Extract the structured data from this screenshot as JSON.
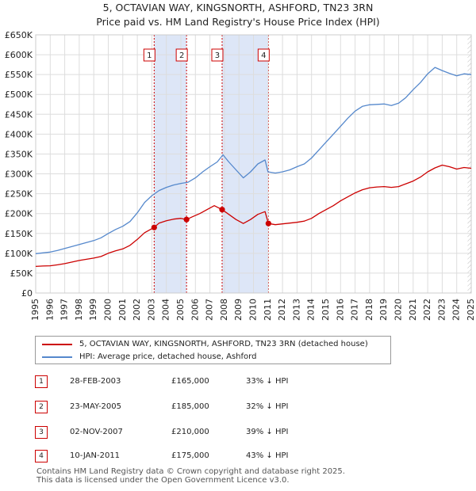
{
  "header": {
    "title_line1": "5, OCTAVIAN WAY, KINGSNORTH, ASHFORD, TN23 3RN",
    "title_line2": "Price paid vs. HM Land Registry's House Price Index (HPI)"
  },
  "legend": {
    "property_label": "5, OCTAVIAN WAY, KINGSNORTH, ASHFORD, TN23 3RN (detached house)",
    "hpi_label": "HPI: Average price, detached house, Ashford"
  },
  "sales": [
    {
      "num": "1",
      "date": "28-FEB-2003",
      "price": "£165,000",
      "hpi": "33% ↓ HPI"
    },
    {
      "num": "2",
      "date": "23-MAY-2005",
      "price": "£185,000",
      "hpi": "32% ↓ HPI"
    },
    {
      "num": "3",
      "date": "02-NOV-2007",
      "price": "£210,000",
      "hpi": "39% ↓ HPI"
    },
    {
      "num": "4",
      "date": "10-JAN-2011",
      "price": "£175,000",
      "hpi": "43% ↓ HPI"
    }
  ],
  "footer": {
    "line1": "Contains HM Land Registry data © Crown copyright and database right 2025.",
    "line2": "This data is licensed under the Open Government Licence v3.0."
  },
  "colors": {
    "property": "#cc0000",
    "hpi": "#5588cc",
    "shade": "#dde6f7",
    "grid": "#dddddd"
  },
  "chart_data": {
    "type": "line",
    "xlim": [
      1995,
      2025
    ],
    "ylim": [
      0,
      650000
    ],
    "x_ticks": [
      1995,
      1996,
      1997,
      1998,
      1999,
      2000,
      2001,
      2002,
      2003,
      2004,
      2005,
      2006,
      2007,
      2008,
      2009,
      2010,
      2011,
      2012,
      2013,
      2014,
      2015,
      2016,
      2017,
      2018,
      2019,
      2020,
      2021,
      2022,
      2023,
      2024,
      2025
    ],
    "y_ticks": [
      0,
      50000,
      100000,
      150000,
      200000,
      250000,
      300000,
      350000,
      400000,
      450000,
      500000,
      550000,
      600000,
      650000
    ],
    "y_tick_labels": [
      "£0",
      "£50K",
      "£100K",
      "£150K",
      "£200K",
      "£250K",
      "£300K",
      "£350K",
      "£400K",
      "£450K",
      "£500K",
      "£550K",
      "£600K",
      "£650K"
    ],
    "series": [
      {
        "name": "5, OCTAVIAN WAY, KINGSNORTH, ASHFORD, TN23 3RN (detached house)",
        "x": [
          1995.0,
          1995.5,
          1996.0,
          1996.5,
          1997.0,
          1997.5,
          1998.0,
          1998.5,
          1999.0,
          1999.5,
          2000.0,
          2000.5,
          2001.0,
          2001.5,
          2002.0,
          2002.5,
          2003.16,
          2003.5,
          2004.0,
          2004.5,
          2005.0,
          2005.39,
          2005.8,
          2006.3,
          2006.8,
          2007.3,
          2007.84,
          2008.3,
          2008.8,
          2009.3,
          2009.8,
          2010.3,
          2010.8,
          2011.03,
          2011.5,
          2012.0,
          2012.5,
          2013.0,
          2013.5,
          2014.0,
          2014.5,
          2015.0,
          2015.5,
          2016.0,
          2016.5,
          2017.0,
          2017.5,
          2018.0,
          2018.5,
          2019.0,
          2019.5,
          2020.0,
          2020.5,
          2021.0,
          2021.5,
          2022.0,
          2022.5,
          2023.0,
          2023.5,
          2024.0,
          2024.5,
          2025.0
        ],
        "y": [
          67000,
          68000,
          68500,
          71000,
          74000,
          78000,
          82000,
          85000,
          88000,
          92000,
          100000,
          106000,
          111000,
          120000,
          135000,
          152000,
          165000,
          176000,
          182000,
          186000,
          188000,
          185000,
          192000,
          200000,
          210000,
          220000,
          210000,
          198000,
          185000,
          175000,
          185000,
          198000,
          205000,
          175000,
          172000,
          174000,
          176000,
          178000,
          181000,
          188000,
          200000,
          210000,
          220000,
          232000,
          242000,
          252000,
          260000,
          265000,
          267000,
          268000,
          266000,
          268000,
          275000,
          282000,
          292000,
          305000,
          315000,
          322000,
          318000,
          312000,
          316000,
          314000
        ]
      },
      {
        "name": "HPI: Average price, detached house, Ashford",
        "x": [
          1995.0,
          1995.5,
          1996.0,
          1996.5,
          1997.0,
          1997.5,
          1998.0,
          1998.5,
          1999.0,
          1999.5,
          2000.0,
          2000.5,
          2001.0,
          2001.5,
          2002.0,
          2002.5,
          2003.0,
          2003.5,
          2004.0,
          2004.5,
          2005.0,
          2005.5,
          2006.0,
          2006.5,
          2007.0,
          2007.5,
          2007.9,
          2008.3,
          2008.8,
          2009.3,
          2009.8,
          2010.3,
          2010.8,
          2011.0,
          2011.5,
          2012.0,
          2012.5,
          2013.0,
          2013.5,
          2014.0,
          2014.5,
          2015.0,
          2015.5,
          2016.0,
          2016.5,
          2017.0,
          2017.5,
          2018.0,
          2018.5,
          2019.0,
          2019.5,
          2020.0,
          2020.5,
          2021.0,
          2021.5,
          2022.0,
          2022.5,
          2023.0,
          2023.5,
          2024.0,
          2024.5,
          2025.0
        ],
        "y": [
          99000,
          101000,
          103000,
          107000,
          112000,
          117000,
          122000,
          127000,
          132000,
          139000,
          150000,
          160000,
          168000,
          180000,
          202000,
          228000,
          245000,
          258000,
          266000,
          272000,
          276000,
          279000,
          290000,
          305000,
          318000,
          330000,
          348000,
          330000,
          310000,
          290000,
          305000,
          325000,
          335000,
          305000,
          302000,
          305000,
          310000,
          318000,
          325000,
          340000,
          360000,
          380000,
          400000,
          420000,
          440000,
          458000,
          470000,
          474000,
          475000,
          476000,
          472000,
          478000,
          492000,
          512000,
          530000,
          552000,
          568000,
          560000,
          553000,
          547000,
          552000,
          550000
        ]
      }
    ],
    "sale_markers": [
      {
        "label": "1",
        "x": 2003.16,
        "y": 165000
      },
      {
        "label": "2",
        "x": 2005.39,
        "y": 185000
      },
      {
        "label": "3",
        "x": 2007.84,
        "y": 210000
      },
      {
        "label": "4",
        "x": 2011.03,
        "y": 175000
      }
    ],
    "shaded_ranges": [
      [
        2003.16,
        2005.39
      ],
      [
        2007.84,
        2011.03
      ]
    ],
    "hatched_after": 2024.75,
    "legend_position": "bottom"
  }
}
